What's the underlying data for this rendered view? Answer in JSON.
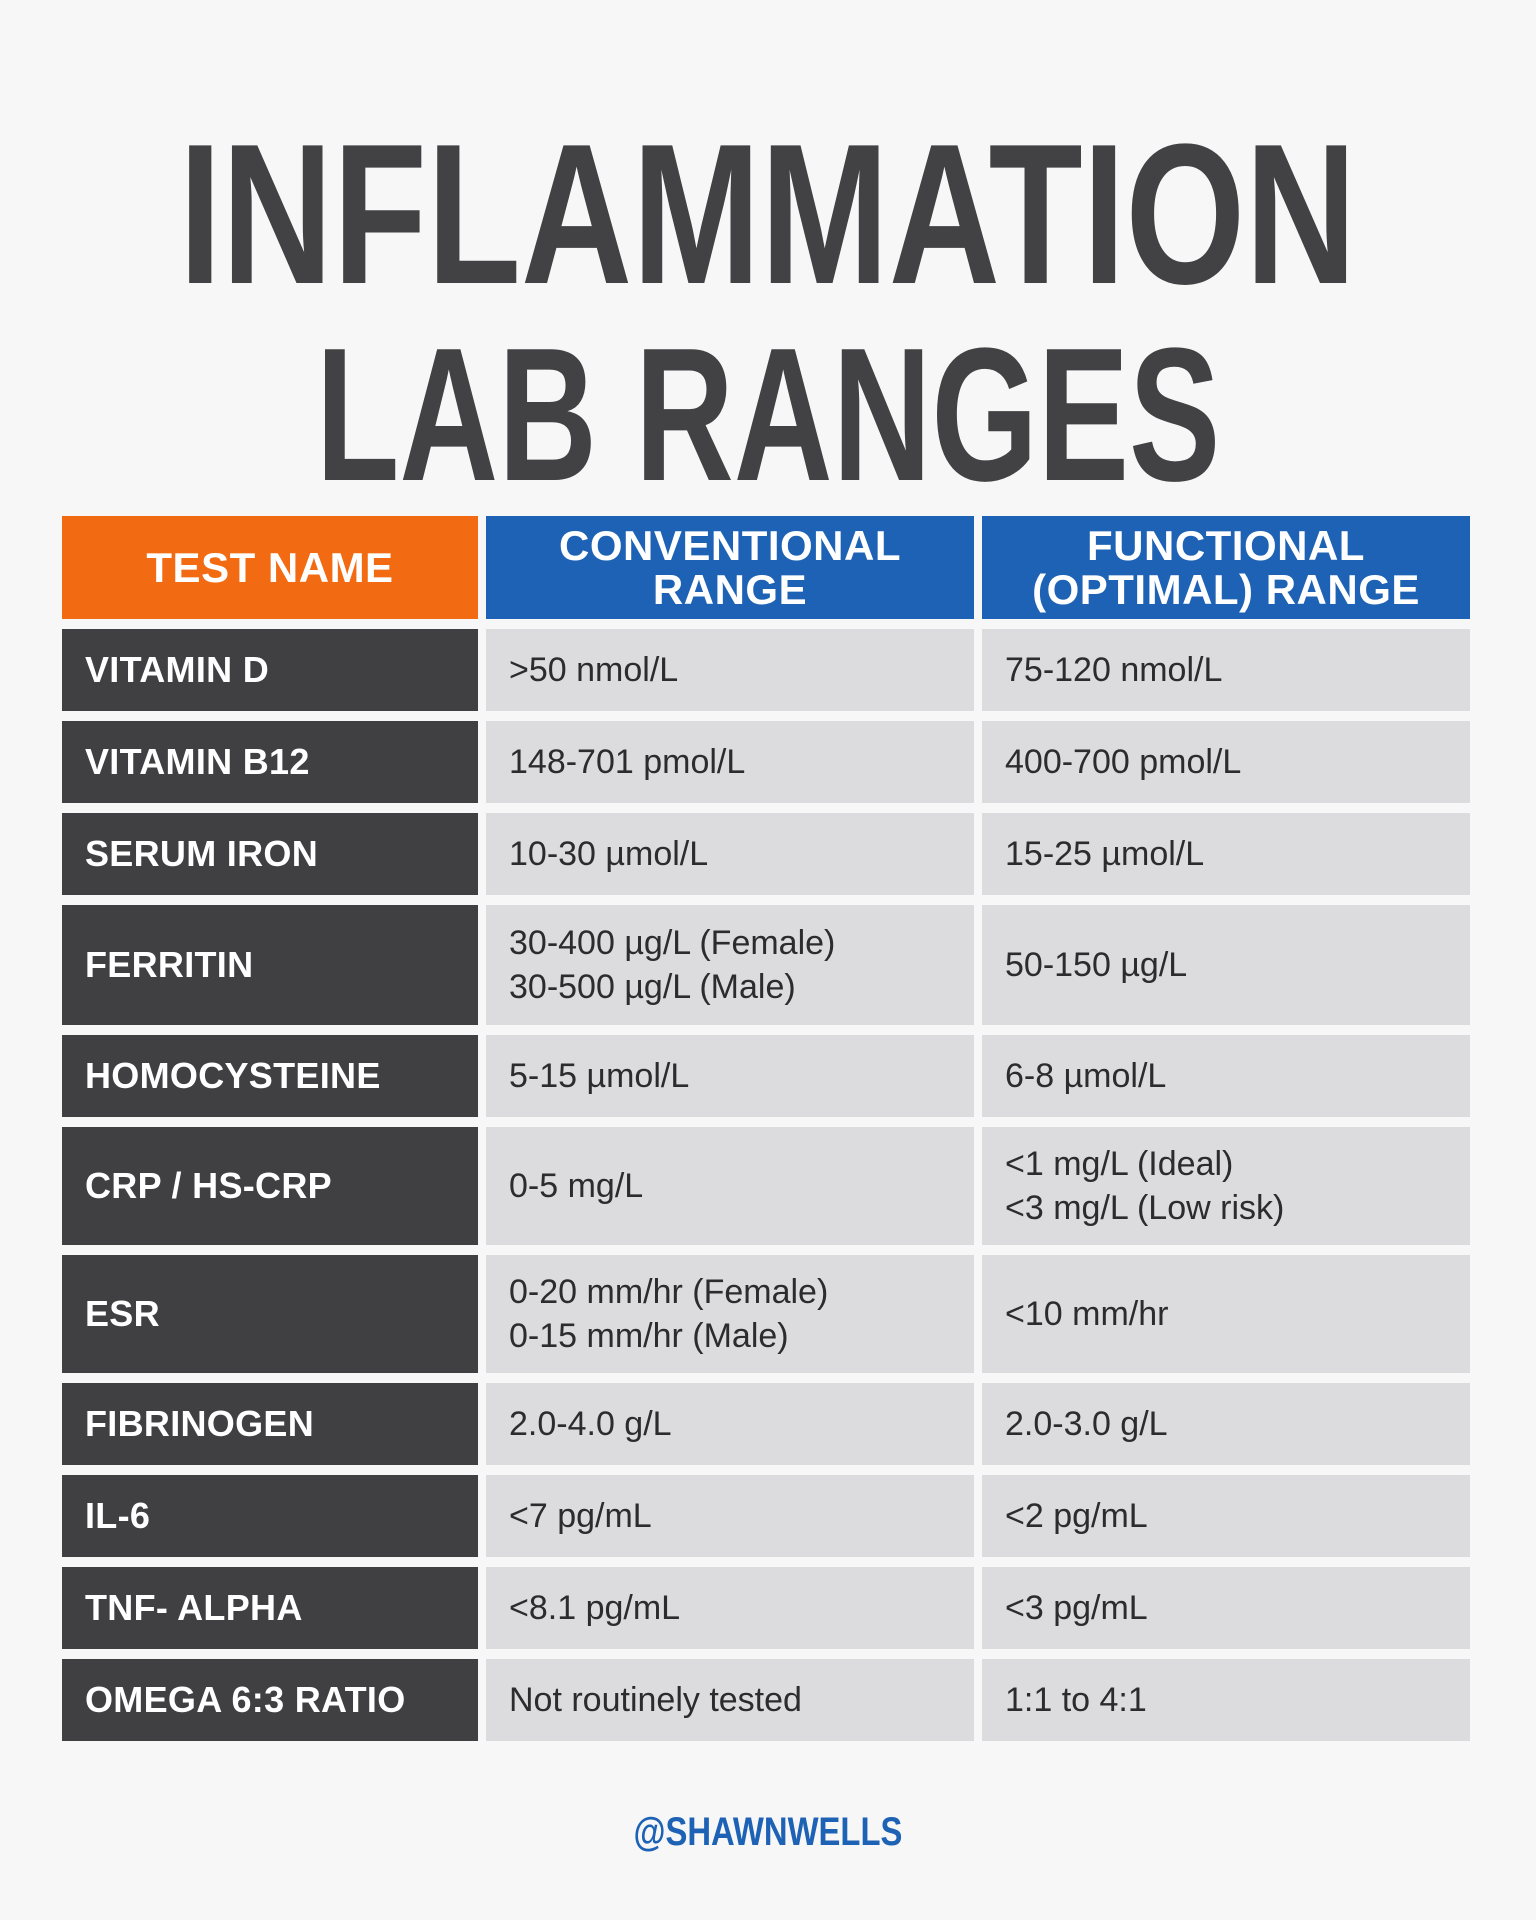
{
  "title": {
    "line1": "INFLAMMATION",
    "line2": "LAB RANGES"
  },
  "header": {
    "test_name": "TEST NAME",
    "conventional_line1": "CONVENTIONAL",
    "conventional_line2": "RANGE",
    "functional_line1": "FUNCTIONAL",
    "functional_line2": "(OPTIMAL) RANGE"
  },
  "colors": {
    "title": "#424244",
    "test_name_header": "#f26b12",
    "range_header": "#1d62b4",
    "name_cell": "#404043",
    "value_cell": "#dcdcde",
    "footer": "#1d62b4"
  },
  "rows": [
    {
      "name": "VITAMIN D",
      "conventional": [
        ">50 nmol/L"
      ],
      "functional": [
        "75-120 nmol/L"
      ]
    },
    {
      "name": "VITAMIN B12",
      "conventional": [
        "148-701 pmol/L"
      ],
      "functional": [
        "400-700 pmol/L"
      ]
    },
    {
      "name": "SERUM IRON",
      "conventional": [
        "10-30 µmol/L"
      ],
      "functional": [
        "15-25 µmol/L"
      ]
    },
    {
      "name": "FERRITIN",
      "conventional": [
        "30-400 µg/L (Female)",
        "30-500 µg/L (Male)"
      ],
      "functional": [
        "50-150 µg/L"
      ]
    },
    {
      "name": "HOMOCYSTEINE",
      "conventional": [
        "5-15 µmol/L"
      ],
      "functional": [
        "6-8 µmol/L"
      ]
    },
    {
      "name": "CRP / HS-CRP",
      "conventional": [
        "0-5 mg/L"
      ],
      "functional": [
        "<1 mg/L (Ideal)",
        "<3 mg/L (Low risk)"
      ]
    },
    {
      "name": "ESR",
      "conventional": [
        "0-20 mm/hr (Female)",
        "0-15 mm/hr (Male)"
      ],
      "functional": [
        "<10 mm/hr"
      ]
    },
    {
      "name": "FIBRINOGEN",
      "conventional": [
        "2.0-4.0 g/L"
      ],
      "functional": [
        "2.0-3.0 g/L"
      ]
    },
    {
      "name": "IL-6",
      "conventional": [
        "<7 pg/mL"
      ],
      "functional": [
        "<2 pg/mL"
      ]
    },
    {
      "name": "TNF- ALPHA",
      "conventional": [
        "<8.1 pg/mL"
      ],
      "functional": [
        "<3 pg/mL"
      ]
    },
    {
      "name": "OMEGA 6:3 RATIO",
      "conventional": [
        "Not routinely tested"
      ],
      "functional": [
        "1:1 to 4:1"
      ]
    }
  ],
  "footer": {
    "handle": "@SHAWNWELLS"
  }
}
